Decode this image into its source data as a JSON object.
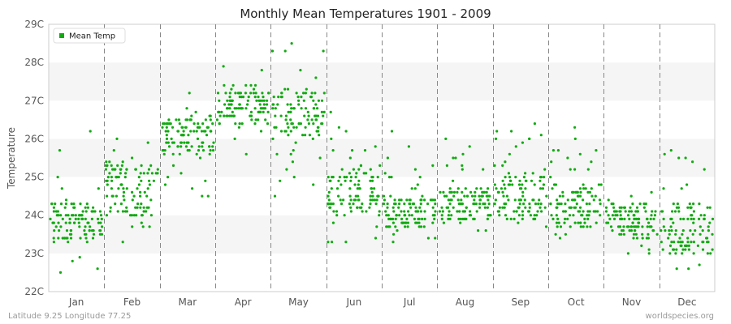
{
  "chart_data": {
    "type": "scatter",
    "title": "Monthly Mean Temperatures 1901 - 2009",
    "xlabel": "",
    "ylabel": "Temperature",
    "categories": [
      "Jan",
      "Feb",
      "Mar",
      "Apr",
      "May",
      "Jun",
      "Jul",
      "Aug",
      "Sep",
      "Oct",
      "Nov",
      "Dec"
    ],
    "y_ticks": [
      "22C",
      "23C",
      "24C",
      "25C",
      "26C",
      "27C",
      "28C",
      "29C"
    ],
    "ylim": [
      22,
      29
    ],
    "grid": "horizontal bands, dashed vertical month separators",
    "legend_position": "top-left",
    "series": [
      {
        "name": "Mean Temp",
        "color": "#11aa11",
        "months": [
          {
            "month": "Jan",
            "min": 22.5,
            "max": 26.2,
            "typical_low": 23.3,
            "typical_high": 24.3
          },
          {
            "month": "Feb",
            "min": 23.3,
            "max": 26.0,
            "typical_low": 24.0,
            "typical_high": 25.4
          },
          {
            "month": "Mar",
            "min": 24.5,
            "max": 27.2,
            "typical_low": 25.6,
            "typical_high": 26.6
          },
          {
            "month": "Apr",
            "min": 25.6,
            "max": 27.9,
            "typical_low": 26.4,
            "typical_high": 27.4
          },
          {
            "month": "May",
            "min": 24.5,
            "max": 28.5,
            "typical_low": 26.0,
            "typical_high": 27.3
          },
          {
            "month": "Jun",
            "min": 23.3,
            "max": 26.7,
            "typical_low": 24.0,
            "typical_high": 25.3
          },
          {
            "month": "Jul",
            "min": 23.3,
            "max": 26.2,
            "typical_low": 23.7,
            "typical_high": 24.5
          },
          {
            "month": "Aug",
            "min": 23.6,
            "max": 26.0,
            "typical_low": 23.8,
            "typical_high": 24.7
          },
          {
            "month": "Sep",
            "min": 23.7,
            "max": 26.4,
            "typical_low": 23.9,
            "typical_high": 25.0
          },
          {
            "month": "Oct",
            "min": 23.4,
            "max": 26.3,
            "typical_low": 23.7,
            "typical_high": 24.8
          },
          {
            "month": "Nov",
            "min": 23.0,
            "max": 24.6,
            "typical_low": 23.5,
            "typical_high": 24.3
          },
          {
            "month": "Dec",
            "min": 22.6,
            "max": 25.7,
            "typical_low": 23.0,
            "typical_high": 24.3
          }
        ]
      }
    ]
  },
  "footer": {
    "left": "Latitude 9.25 Longitude 77.25",
    "right": "worldspecies.org"
  },
  "colors": {
    "band_light": "#ffffff",
    "band_shade": "#f5f5f5",
    "point": "#11aa11",
    "separator": "#888888"
  }
}
